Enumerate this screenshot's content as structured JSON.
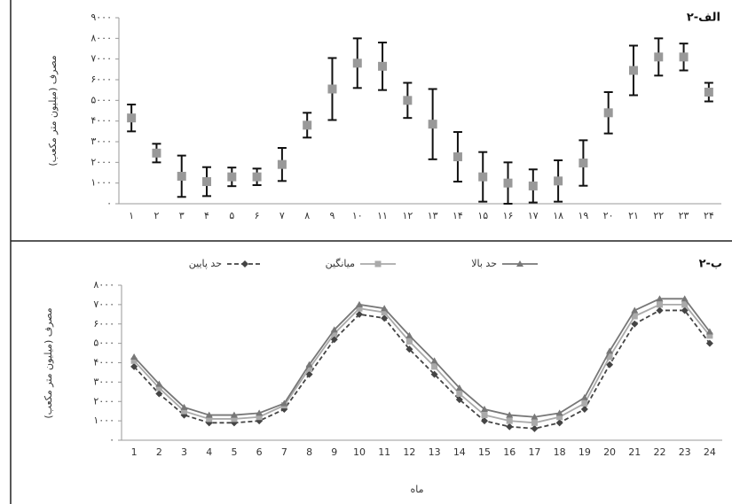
{
  "chart_data": [
    {
      "type": "errorbar",
      "title": "۲-الف",
      "y_label": "مصرف (میلیون متر مکعب)",
      "categories": [
        "۱",
        "۲",
        "۳",
        "۴",
        "۵",
        "۶",
        "۷",
        "۸",
        "۹",
        "۱۰",
        "۱۱",
        "۱۲",
        "۱۳",
        "۱۴",
        "۱۵",
        "۱۶",
        "۱۷",
        "۱۸",
        "۱۹",
        "۲۰",
        "۲۱",
        "۲۲",
        "۲۳",
        "۲۴"
      ],
      "values": [
        4150,
        2450,
        1330,
        1070,
        1300,
        1300,
        1900,
        3800,
        5550,
        6800,
        6650,
        5000,
        3850,
        2270,
        1300,
        1000,
        860,
        1100,
        1970,
        4400,
        6450,
        7100,
        7100,
        5400
      ],
      "errors": [
        650,
        450,
        1000,
        700,
        450,
        400,
        800,
        600,
        1500,
        1200,
        1150,
        850,
        1700,
        1200,
        1200,
        1000,
        800,
        1000,
        1100,
        1000,
        1200,
        900,
        650,
        450
      ],
      "color": "#999999",
      "error_color": "#111111",
      "ylim": [
        0,
        9000
      ],
      "yticks": [
        {
          "value": 0,
          "label": "۰"
        },
        {
          "value": 1000,
          "label": "۱۰۰۰"
        },
        {
          "value": 2000,
          "label": "۲۰۰۰"
        },
        {
          "value": 3000,
          "label": "۳۰۰۰"
        },
        {
          "value": 4000,
          "label": "۴۰۰۰"
        },
        {
          "value": 5000,
          "label": "۵۰۰۰"
        },
        {
          "value": 6000,
          "label": "۶۰۰۰"
        },
        {
          "value": 7000,
          "label": "۷۰۰۰"
        },
        {
          "value": 8000,
          "label": "۸۰۰۰"
        },
        {
          "value": 9000,
          "label": "۹۰۰۰"
        }
      ]
    },
    {
      "type": "line",
      "title": "۲-ب",
      "y_label": "مصرف (میلیون متر مکعب)",
      "x_label": "ماه",
      "categories": [
        "1",
        "2",
        "3",
        "4",
        "5",
        "6",
        "7",
        "8",
        "9",
        "10",
        "11",
        "12",
        "13",
        "14",
        "15",
        "16",
        "17",
        "18",
        "19",
        "20",
        "21",
        "22",
        "23",
        "24"
      ],
      "series": [
        {
          "name": "حد پایین",
          "color": "#444444",
          "marker": "diamond",
          "dash": true,
          "values": [
            3800,
            2400,
            1300,
            900,
            900,
            1000,
            1600,
            3400,
            5200,
            6500,
            6300,
            4700,
            3400,
            2100,
            1000,
            700,
            600,
            900,
            1600,
            3900,
            6000,
            6700,
            6700,
            5000
          ]
        },
        {
          "name": "میانگین",
          "color": "#aaaaaa",
          "marker": "square",
          "dash": false,
          "values": [
            4100,
            2700,
            1500,
            1100,
            1100,
            1200,
            1800,
            3700,
            5500,
            6800,
            6600,
            5100,
            3800,
            2400,
            1300,
            1000,
            900,
            1200,
            1900,
            4300,
            6400,
            7000,
            7000,
            5400
          ]
        },
        {
          "name": "حد بالا",
          "color": "#777777",
          "marker": "triangle",
          "dash": false,
          "values": [
            4300,
            2900,
            1700,
            1300,
            1300,
            1400,
            1900,
            3900,
            5700,
            7000,
            6800,
            5400,
            4100,
            2700,
            1600,
            1300,
            1200,
            1400,
            2200,
            4600,
            6700,
            7300,
            7300,
            5600
          ]
        }
      ],
      "ylim": [
        0,
        8000
      ],
      "yticks": [
        {
          "value": 0,
          "label": "۰"
        },
        {
          "value": 1000,
          "label": "۱۰۰۰"
        },
        {
          "value": 2000,
          "label": "۲۰۰۰"
        },
        {
          "value": 3000,
          "label": "۳۰۰۰"
        },
        {
          "value": 4000,
          "label": "۴۰۰۰"
        },
        {
          "value": 5000,
          "label": "۵۰۰۰"
        },
        {
          "value": 6000,
          "label": "۶۰۰۰"
        },
        {
          "value": 7000,
          "label": "۷۰۰۰"
        },
        {
          "value": 8000,
          "label": "۸۰۰۰"
        }
      ]
    }
  ]
}
